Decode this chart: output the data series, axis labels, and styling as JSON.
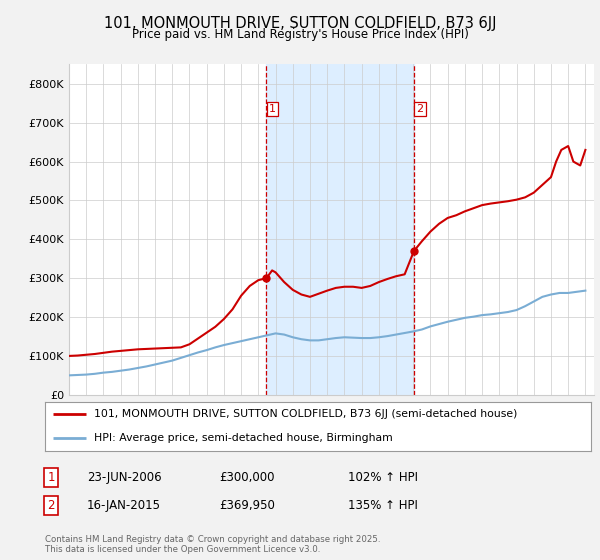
{
  "title": "101, MONMOUTH DRIVE, SUTTON COLDFIELD, B73 6JJ",
  "subtitle": "Price paid vs. HM Land Registry's House Price Index (HPI)",
  "legend_line1": "101, MONMOUTH DRIVE, SUTTON COLDFIELD, B73 6JJ (semi-detached house)",
  "legend_line2": "HPI: Average price, semi-detached house, Birmingham",
  "annotation1_label": "1",
  "annotation1_date": "23-JUN-2006",
  "annotation1_price": "£300,000",
  "annotation1_hpi": "102% ↑ HPI",
  "annotation2_label": "2",
  "annotation2_date": "16-JAN-2015",
  "annotation2_price": "£369,950",
  "annotation2_hpi": "135% ↑ HPI",
  "footnote": "Contains HM Land Registry data © Crown copyright and database right 2025.\nThis data is licensed under the Open Government Licence v3.0.",
  "red_color": "#cc0000",
  "blue_color": "#7aadd4",
  "shade_color": "#ddeeff",
  "vline_color": "#cc0000",
  "background_color": "#f2f2f2",
  "plot_bg_color": "#ffffff",
  "ylim": [
    0,
    850000
  ],
  "yticks": [
    0,
    100000,
    200000,
    300000,
    400000,
    500000,
    600000,
    700000,
    800000
  ],
  "ytick_labels": [
    "£0",
    "£100K",
    "£200K",
    "£300K",
    "£400K",
    "£500K",
    "£600K",
    "£700K",
    "£800K"
  ],
  "hpi_x": [
    1995.0,
    1995.5,
    1996.0,
    1996.5,
    1997.0,
    1997.5,
    1998.0,
    1998.5,
    1999.0,
    1999.5,
    2000.0,
    2000.5,
    2001.0,
    2001.5,
    2002.0,
    2002.5,
    2003.0,
    2003.5,
    2004.0,
    2004.5,
    2005.0,
    2005.5,
    2006.0,
    2006.5,
    2007.0,
    2007.5,
    2008.0,
    2008.5,
    2009.0,
    2009.5,
    2010.0,
    2010.5,
    2011.0,
    2011.5,
    2012.0,
    2012.5,
    2013.0,
    2013.5,
    2014.0,
    2014.5,
    2015.0,
    2015.5,
    2016.0,
    2016.5,
    2017.0,
    2017.5,
    2018.0,
    2018.5,
    2019.0,
    2019.5,
    2020.0,
    2020.5,
    2021.0,
    2021.5,
    2022.0,
    2022.5,
    2023.0,
    2023.5,
    2024.0,
    2024.5,
    2025.0
  ],
  "hpi_y": [
    50000,
    51000,
    52000,
    54000,
    57000,
    59000,
    62000,
    65000,
    69000,
    73000,
    78000,
    83000,
    88000,
    95000,
    102000,
    109000,
    115000,
    122000,
    128000,
    133000,
    138000,
    143000,
    148000,
    153000,
    158000,
    155000,
    148000,
    143000,
    140000,
    140000,
    143000,
    146000,
    148000,
    147000,
    146000,
    146000,
    148000,
    151000,
    155000,
    159000,
    163000,
    168000,
    176000,
    182000,
    188000,
    193000,
    198000,
    201000,
    205000,
    207000,
    210000,
    213000,
    218000,
    228000,
    240000,
    252000,
    258000,
    262000,
    262000,
    265000,
    268000
  ],
  "price_x": [
    1995.0,
    1995.5,
    1996.0,
    1996.5,
    1997.0,
    1997.5,
    1998.0,
    1998.5,
    1999.0,
    1999.5,
    2000.0,
    2000.5,
    2001.0,
    2001.5,
    2002.0,
    2002.5,
    2003.0,
    2003.5,
    2004.0,
    2004.5,
    2005.0,
    2005.5,
    2006.0,
    2006.47,
    2006.8,
    2007.0,
    2007.5,
    2008.0,
    2008.5,
    2009.0,
    2009.5,
    2010.0,
    2010.5,
    2011.0,
    2011.5,
    2012.0,
    2012.5,
    2013.0,
    2013.5,
    2014.0,
    2014.5,
    2015.04,
    2015.5,
    2016.0,
    2016.5,
    2017.0,
    2017.5,
    2018.0,
    2018.5,
    2019.0,
    2019.5,
    2020.0,
    2020.5,
    2021.0,
    2021.5,
    2022.0,
    2022.5,
    2023.0,
    2023.3,
    2023.6,
    2024.0,
    2024.3,
    2024.7,
    2025.0
  ],
  "price_y": [
    100000,
    101000,
    103000,
    105000,
    108000,
    111000,
    113000,
    115000,
    117000,
    118000,
    119000,
    120000,
    121000,
    122000,
    130000,
    145000,
    160000,
    175000,
    195000,
    220000,
    255000,
    280000,
    295000,
    300000,
    320000,
    315000,
    290000,
    270000,
    258000,
    252000,
    260000,
    268000,
    275000,
    278000,
    278000,
    275000,
    280000,
    290000,
    298000,
    305000,
    310000,
    369950,
    395000,
    420000,
    440000,
    455000,
    462000,
    472000,
    480000,
    488000,
    492000,
    495000,
    498000,
    502000,
    508000,
    520000,
    540000,
    560000,
    600000,
    630000,
    640000,
    600000,
    590000,
    630000
  ],
  "vline1_x": 2006.47,
  "vline2_x": 2015.04,
  "marker1_x": 2006.47,
  "marker1_y": 300000,
  "marker2_x": 2015.04,
  "marker2_y": 369950,
  "xmin": 1995,
  "xmax": 2025.5,
  "xticks": [
    1995,
    1996,
    1997,
    1998,
    1999,
    2000,
    2001,
    2002,
    2003,
    2004,
    2005,
    2006,
    2007,
    2008,
    2009,
    2010,
    2011,
    2012,
    2013,
    2014,
    2015,
    2016,
    2017,
    2018,
    2019,
    2020,
    2021,
    2022,
    2023,
    2024,
    2025
  ]
}
